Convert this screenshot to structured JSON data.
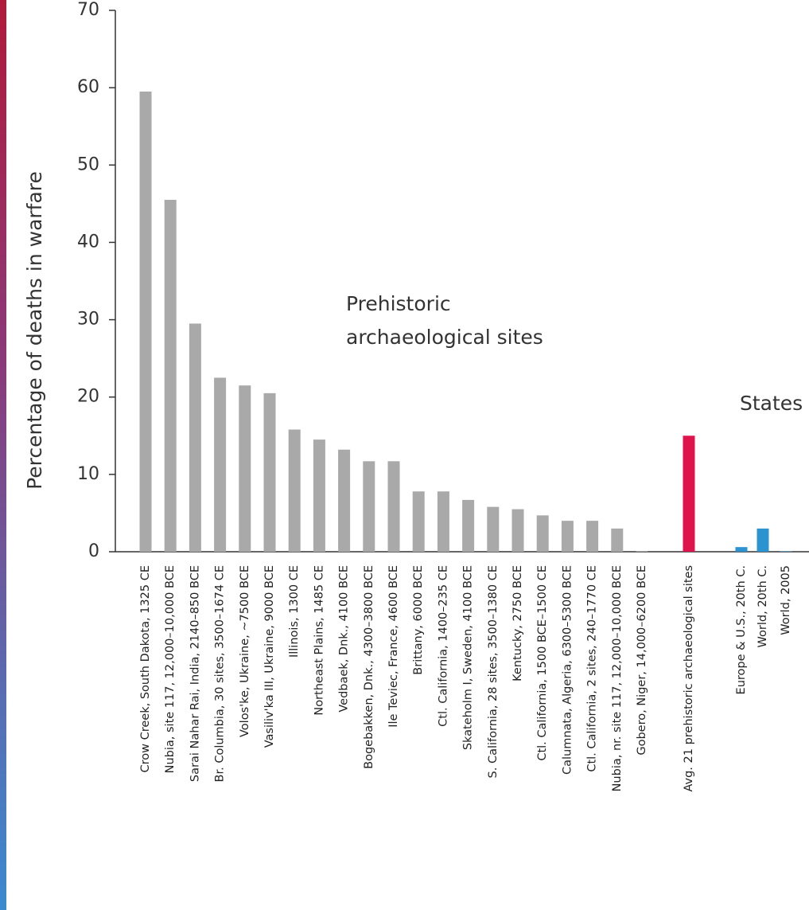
{
  "chart_data": {
    "type": "bar",
    "title": "",
    "xlabel": "",
    "ylabel": "Percentage of deaths in warfare",
    "ylim": [
      0,
      70
    ],
    "yticks": [
      0,
      10,
      20,
      30,
      40,
      50,
      60,
      70
    ],
    "grid": false,
    "annotations": [
      {
        "text_lines": [
          "Prehistoric",
          "archaeological sites"
        ]
      },
      {
        "text_lines": [
          "States"
        ]
      }
    ],
    "colors": {
      "prehistoric": "#a9a9a9",
      "average": "#e0144c",
      "states": "#2a93d0"
    },
    "categories": [
      "Crow Creek, South Dakota, 1325 CE",
      "Nubia, site 117, 12,000–10,000 BCE",
      "Sarai Nahar Rai, India, 2140–850 BCE",
      "Br. Columbia, 30 sites, 3500–1674 CE",
      "Volos'ke, Ukraine, ~7500 BCE",
      "Vasiliv'ka III, Ukraine, 9000 BCE",
      "Illinois, 1300 CE",
      "Northeast Plains, 1485 CE",
      "Vedbaek, Dnk., 4100 BCE",
      "Bogebakken, Dnk., 4300–3800 BCE",
      "Ile Teviec, France, 4600 BCE",
      "Brittany, 6000 BCE",
      "Ctl. California, 1400–235 CE",
      "Skateholm I, Sweden, 4100 BCE",
      "S. California, 28 sites, 3500–1380 CE",
      "Kentucky, 2750 BCE",
      "Ctl. California, 1500 BCE–1500 CE",
      "Calumnata, Algeria, 6300–5300 BCE",
      "Ctl. California, 2 sites, 240–1770 CE",
      "Nubia, nr. site 117, 12,000–10,000 BCE",
      "Gobero, Niger, 14,000–6200 BCE",
      "Avg. 21 prehistoric archaeological sites",
      "Europe & U.S., 20th C.",
      "World, 20th C.",
      "World, 2005"
    ],
    "values": [
      59.5,
      45.5,
      29.5,
      22.5,
      21.5,
      20.5,
      15.8,
      14.5,
      13.2,
      11.7,
      11.7,
      7.8,
      7.8,
      6.7,
      5.8,
      5.5,
      4.7,
      4.0,
      4.0,
      3.0,
      0.0,
      15.0,
      0.6,
      3.0,
      0.03
    ],
    "groups": [
      "prehistoric",
      "prehistoric",
      "prehistoric",
      "prehistoric",
      "prehistoric",
      "prehistoric",
      "prehistoric",
      "prehistoric",
      "prehistoric",
      "prehistoric",
      "prehistoric",
      "prehistoric",
      "prehistoric",
      "prehistoric",
      "prehistoric",
      "prehistoric",
      "prehistoric",
      "prehistoric",
      "prehistoric",
      "prehistoric",
      "prehistoric",
      "average",
      "states",
      "states",
      "states"
    ]
  }
}
